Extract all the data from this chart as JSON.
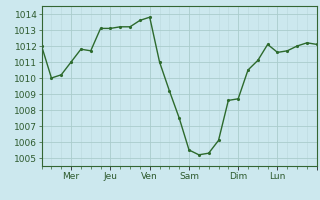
{
  "x_values": [
    0,
    1,
    2,
    3,
    4,
    5,
    6,
    7,
    8,
    9,
    10,
    11,
    12,
    13,
    14,
    15,
    16,
    17,
    18,
    19,
    20,
    21,
    22,
    23,
    24,
    25,
    26,
    27,
    28
  ],
  "y_values": [
    1012,
    1010,
    1010.2,
    1011,
    1011.8,
    1011.7,
    1013.1,
    1013.1,
    1013.2,
    1013.2,
    1013.6,
    1013.8,
    1011,
    1009.2,
    1007.5,
    1005.5,
    1005.2,
    1005.3,
    1006.1,
    1008.6,
    1008.7,
    1010.5,
    1011.1,
    1012.1,
    1011.6,
    1011.7,
    1012,
    1012.2,
    1012.1
  ],
  "day_positions": [
    3,
    7,
    11,
    15,
    20,
    24,
    28
  ],
  "day_labels": [
    "Mer",
    "Jeu",
    "Ven",
    "Sam",
    "Dim",
    "Lun",
    ""
  ],
  "xlim": [
    0,
    28
  ],
  "ylim": [
    1004.5,
    1014.5
  ],
  "yticks": [
    1005,
    1006,
    1007,
    1008,
    1009,
    1010,
    1011,
    1012,
    1013,
    1014
  ],
  "line_color": "#2d6a2d",
  "marker_color": "#2d6a2d",
  "bg_color": "#cce8ee",
  "grid_color_major": "#aacccc",
  "grid_color_minor": "#bbd8dd",
  "tick_label_color": "#2d5a2d",
  "spine_color": "#336633",
  "axis_label_fontsize": 6.5,
  "ytick_fontsize": 6.5,
  "line_width": 1.0,
  "marker_size": 2.5
}
